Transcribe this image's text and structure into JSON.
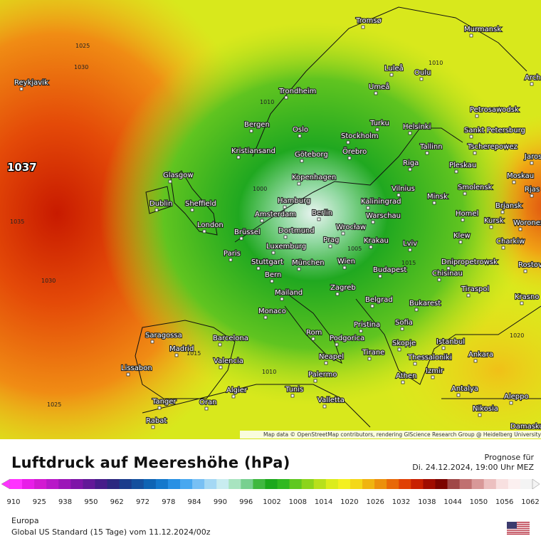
{
  "map": {
    "cities": [
      "Tromsø",
      "Murmansk",
      "Luleå",
      "Oulu",
      "Arch",
      "Reykjavik",
      "Umeå",
      "Trondheim",
      "Petrosawodsk",
      "Bergen",
      "Turku",
      "Helsinki",
      "Oslo",
      "Stockholm",
      "Sankt Petersburg",
      "Kristiansand",
      "Göteborg",
      "Örebro",
      "Tallinn",
      "Tscherepowez",
      "Jaros",
      "Riga",
      "Pleskau",
      "Glasgow",
      "Kopenhagen",
      "Moskau",
      "Vilnius",
      "Smolensk",
      "Minsk",
      "Rjas",
      "Dublin",
      "Sheffield",
      "Hamburg",
      "Kaliningrad",
      "Brjansk",
      "Amsterdam",
      "Berlin",
      "Warschau",
      "Homel",
      "London",
      "Kursk",
      "Woronez",
      "Brüssel",
      "Dortmund",
      "Wrocław",
      "Prag",
      "Krakau",
      "Klew",
      "Charkiw",
      "Paris",
      "Luxemburg",
      "Lviv",
      "Stuttgart",
      "München",
      "Wien",
      "Dnipropetrowsk",
      "Rostov",
      "Budapest",
      "Chisinau",
      "Bern",
      "Tiraspol",
      "Krasno",
      "Mailand",
      "Zagreb",
      "Belgrad",
      "Bukarest",
      "Monaco",
      "Pristina",
      "Sofia",
      "Saragossa",
      "Barcelona",
      "Rom",
      "Podgorica",
      "Istanbul",
      "Madrid",
      "Skopje",
      "Ankara",
      "Tirane",
      "Thessaloniki",
      "Valencia",
      "Neapel",
      "Lissabon",
      "Izmir",
      "Athen",
      "Palermo",
      "Antalya",
      "Algier",
      "Tunis",
      "Aleppo",
      "Tanger",
      "Oran",
      "Valletta",
      "Nikosia",
      "Rabat",
      "Damaskus"
    ],
    "isobar_labels": [
      "1025",
      "1030",
      "1037",
      "1035",
      "1030",
      "1025",
      "1010",
      "1015",
      "1010",
      "1015",
      "1020",
      "1010",
      "1000",
      "1005"
    ],
    "attribution": "Map data © OpenStreetMap contributors, rendering GIScience Research Group @ Heidelberg University"
  },
  "legend": {
    "title": "Luftdruck auf Meereshöhe (hPa)",
    "ticks": [
      "910",
      "925",
      "938",
      "950",
      "962",
      "972",
      "978",
      "984",
      "990",
      "996",
      "1002",
      "1008",
      "1014",
      "1020",
      "1026",
      "1032",
      "1038",
      "1044",
      "1050",
      "1056",
      "1062"
    ],
    "colors": [
      "#ff33ff",
      "#e81ee8",
      "#d21ad2",
      "#b818c8",
      "#9c16b8",
      "#7e14a8",
      "#621898",
      "#461c8a",
      "#2c2880",
      "#1a3c8c",
      "#14509e",
      "#0e64b4",
      "#1478cc",
      "#2890e4",
      "#48a8f0",
      "#78c0f4",
      "#a4d8f4",
      "#c8ecf0",
      "#a8e4c0",
      "#78d090",
      "#40b840",
      "#1ca81c",
      "#30b820",
      "#60c820",
      "#8cd41c",
      "#b8e01c",
      "#dcec1c",
      "#f4f020",
      "#f4d818",
      "#f0b410",
      "#ec900c",
      "#e86808",
      "#e04004",
      "#c82000",
      "#a00c00",
      "#7c0400",
      "#a04848",
      "#c07070",
      "#d89898",
      "#ecc0c0",
      "#f8e0e0",
      "#fcf0f0",
      "#f4f4f4"
    ]
  },
  "forecast": {
    "label": "Prognose für",
    "datetime": "Di. 24.12.2024, 19:00 Uhr MEZ"
  },
  "footer": {
    "region": "Europa",
    "model": "Global US Standard (15 Tage)  vom  11.12.2024/00z"
  }
}
